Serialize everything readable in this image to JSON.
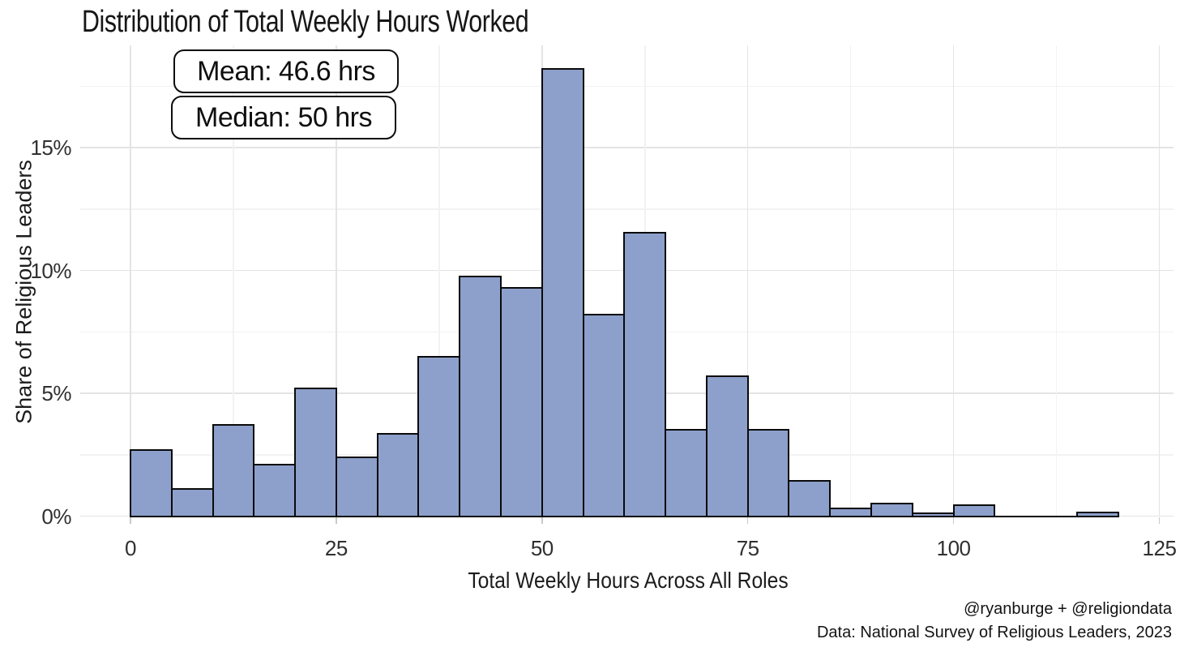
{
  "title": "Distribution of Total Weekly Hours Worked",
  "annotations": {
    "mean_label": "Mean: 46.6 hrs",
    "median_label": "Median: 50 hrs"
  },
  "caption": {
    "line1": "@ryanburge + @religiondata",
    "line2": "Data: National Survey of Religious Leaders, 2023"
  },
  "colors": {
    "background": "#FFFFFF",
    "bar_fill": "#8DA0CB",
    "bar_border": "#0A0A0A",
    "grid_major": "#E4E4E4",
    "grid_minor": "#F2F2F2",
    "tick_mark": "#C9C9C9",
    "title_text": "#161616",
    "tick_label_text": "#303030",
    "annotation_border": "#0D0D0D"
  },
  "chart_data": {
    "type": "bar",
    "subtype": "histogram",
    "title": "Distribution of Total Weekly Hours Worked",
    "xlabel": "Total Weekly Hours Across All Roles",
    "ylabel": "Share of Religious Leaders",
    "mean_hours": 46.6,
    "median_hours": 50,
    "bin_width_hours": 5,
    "grid": "major+minor",
    "legend": "none",
    "xlim": [
      -6,
      126.5
    ],
    "ylim": [
      0,
      19.2
    ],
    "x_ticks": [
      {
        "value": 0,
        "label": "0"
      },
      {
        "value": 25,
        "label": "25"
      },
      {
        "value": 50,
        "label": "50"
      },
      {
        "value": 75,
        "label": "75"
      },
      {
        "value": 100,
        "label": "100"
      },
      {
        "value": 125,
        "label": "125"
      }
    ],
    "y_ticks": [
      {
        "value": 0,
        "label": "0%"
      },
      {
        "value": 5,
        "label": "5%"
      },
      {
        "value": 10,
        "label": "10%"
      },
      {
        "value": 15,
        "label": "15%"
      }
    ],
    "bins": [
      {
        "range": [
          0,
          5
        ],
        "pct": 2.7
      },
      {
        "range": [
          5,
          10
        ],
        "pct": 1.1
      },
      {
        "range": [
          10,
          15
        ],
        "pct": 3.7
      },
      {
        "range": [
          15,
          20
        ],
        "pct": 2.1
      },
      {
        "range": [
          20,
          25
        ],
        "pct": 5.2
      },
      {
        "range": [
          25,
          30
        ],
        "pct": 2.4
      },
      {
        "range": [
          30,
          35
        ],
        "pct": 3.35
      },
      {
        "range": [
          35,
          40
        ],
        "pct": 6.5
      },
      {
        "range": [
          40,
          45
        ],
        "pct": 9.75
      },
      {
        "range": [
          45,
          50
        ],
        "pct": 9.3
      },
      {
        "range": [
          50,
          55
        ],
        "pct": 18.2
      },
      {
        "range": [
          55,
          60
        ],
        "pct": 8.2
      },
      {
        "range": [
          60,
          65
        ],
        "pct": 11.55
      },
      {
        "range": [
          65,
          70
        ],
        "pct": 3.5
      },
      {
        "range": [
          70,
          75
        ],
        "pct": 5.7
      },
      {
        "range": [
          75,
          80
        ],
        "pct": 3.5
      },
      {
        "range": [
          80,
          85
        ],
        "pct": 1.45
      },
      {
        "range": [
          85,
          90
        ],
        "pct": 0.3
      },
      {
        "range": [
          90,
          95
        ],
        "pct": 0.5
      },
      {
        "range": [
          95,
          100
        ],
        "pct": 0.1
      },
      {
        "range": [
          100,
          105
        ],
        "pct": 0.45
      },
      {
        "range": [
          105,
          110
        ],
        "pct": 0
      },
      {
        "range": [
          110,
          115
        ],
        "pct": 0
      },
      {
        "range": [
          115,
          120
        ],
        "pct": 0.15
      }
    ]
  }
}
